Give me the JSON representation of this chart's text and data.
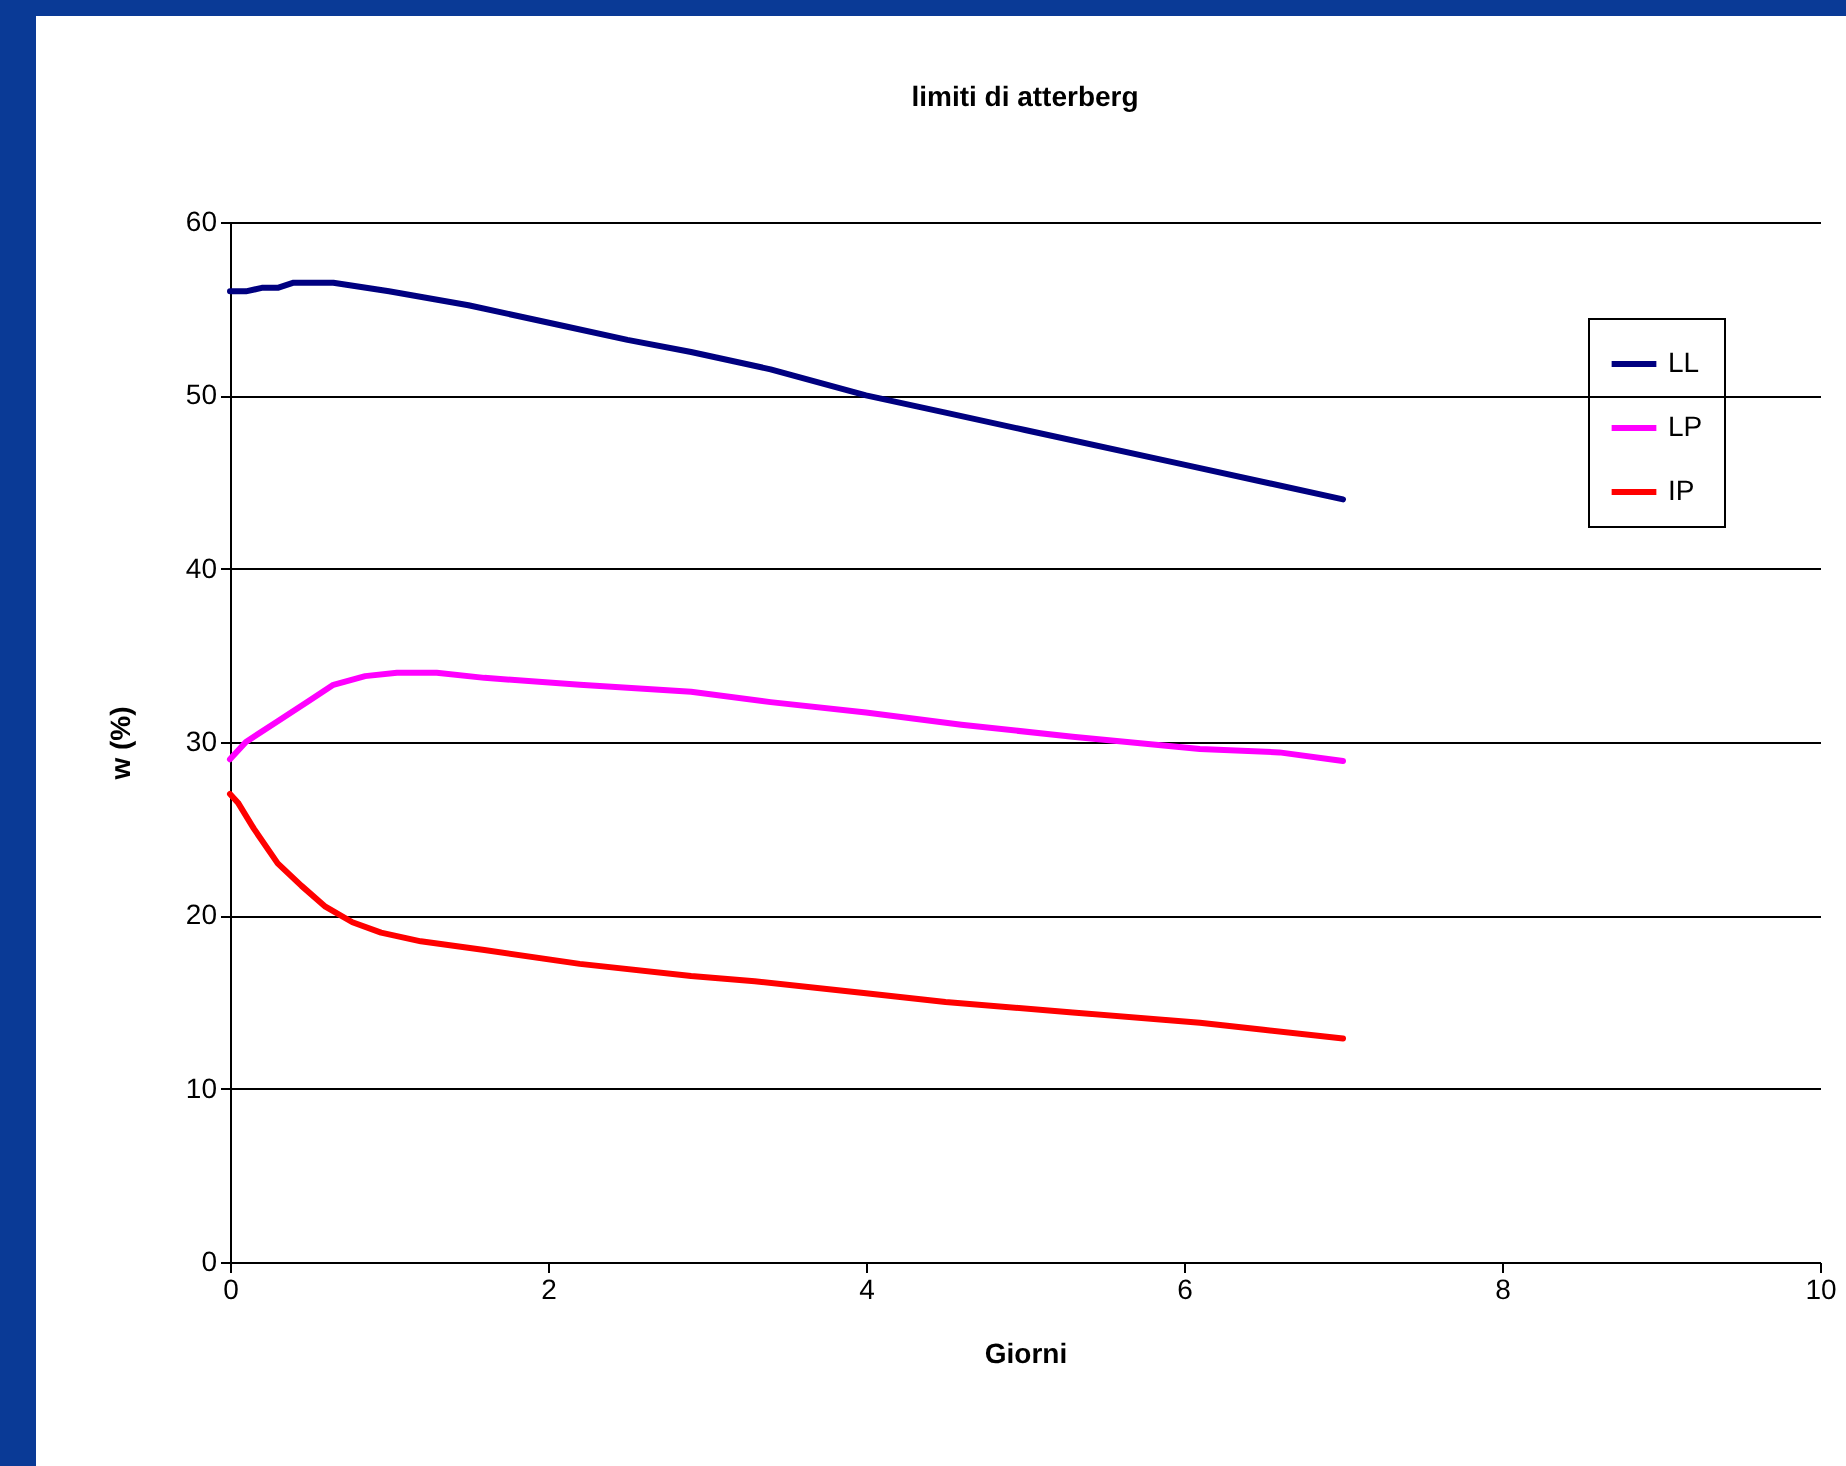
{
  "chart_data": {
    "type": "line",
    "title": "limiti di atterberg",
    "xlabel": "Giorni",
    "ylabel": "w (%)",
    "xlim": [
      0,
      10
    ],
    "xticks": [
      0,
      2,
      4,
      6,
      8,
      10
    ],
    "ylim": [
      0,
      60
    ],
    "yticks": [
      0,
      10,
      20,
      30,
      40,
      50,
      60
    ],
    "grid": "y",
    "legend": "top right",
    "marker": "none",
    "line_style": "solid",
    "series": [
      {
        "name": "LL",
        "color": "#000080",
        "x": [
          0,
          0.1,
          0.2,
          0.3,
          0.4,
          0.65,
          1,
          1.5,
          2.1,
          2.5,
          2.9,
          3.4,
          4,
          4.5,
          5,
          6,
          7
        ],
        "values": [
          56,
          56,
          56.2,
          56.2,
          56.5,
          56.5,
          56,
          55.2,
          54,
          53.2,
          52.5,
          51.5,
          50,
          49,
          48,
          46,
          44
        ]
      },
      {
        "name": "LP",
        "color": "#ff00ff",
        "x": [
          0,
          0.1,
          0.3,
          0.5,
          0.65,
          0.85,
          1.05,
          1.3,
          1.6,
          2.2,
          2.9,
          3.4,
          4,
          4.6,
          5.3,
          6.1,
          6.6,
          7
        ],
        "values": [
          29,
          30,
          31.2,
          32.4,
          33.3,
          33.8,
          34,
          34,
          33.7,
          33.3,
          32.9,
          32.3,
          31.7,
          31,
          30.3,
          29.6,
          29.4,
          28.9
        ]
      },
      {
        "name": "IP",
        "color": "#ff0000",
        "x": [
          0,
          0.05,
          0.15,
          0.3,
          0.45,
          0.6,
          0.77,
          0.95,
          1.2,
          1.6,
          2.2,
          2.9,
          3.3,
          4,
          4.5,
          5.3,
          6.1,
          6.5,
          7
        ],
        "values": [
          27,
          26.5,
          25,
          23,
          21.7,
          20.5,
          19.6,
          19,
          18.5,
          18,
          17.2,
          16.5,
          16.2,
          15.5,
          15,
          14.4,
          13.8,
          13.4,
          12.9
        ]
      }
    ]
  }
}
